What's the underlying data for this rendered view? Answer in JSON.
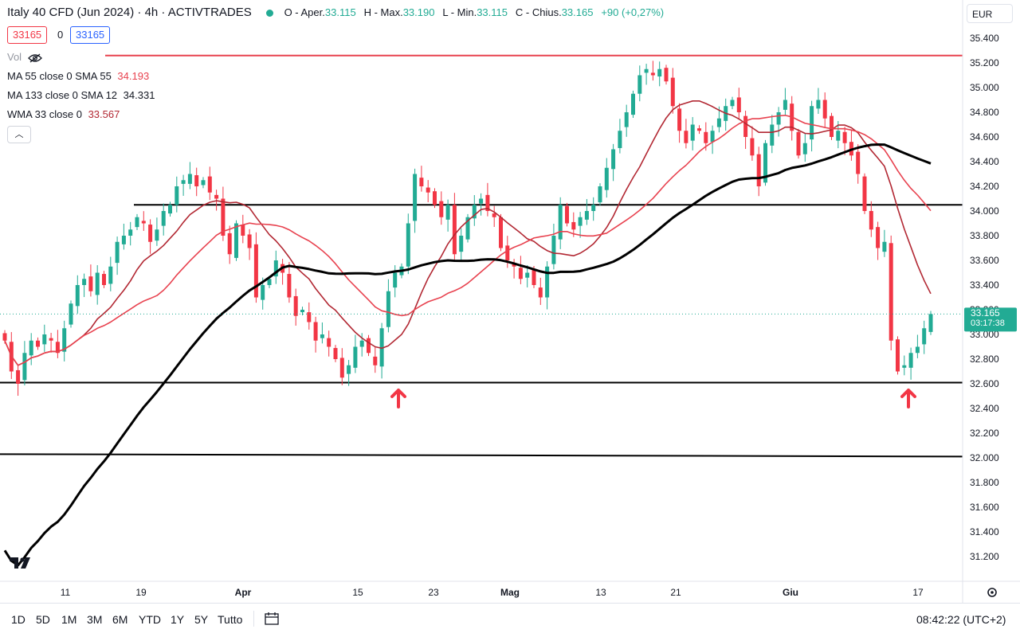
{
  "header": {
    "title": "Italy 40 CFD (Jun 2024) · 4h · ACTIVTRADES",
    "ohlc": [
      {
        "label": "O - Aper.",
        "value": "33.115"
      },
      {
        "label": "H - Max.",
        "value": "33.190"
      },
      {
        "label": "L - Min.",
        "value": "33.115"
      },
      {
        "label": "C - Chius.",
        "value": "33.165"
      }
    ],
    "change": "+90 (+0,27%)",
    "sell_price": "33165",
    "spread": "0",
    "buy_price": "33165"
  },
  "indicators": {
    "vol_label": "Vol",
    "ma55": {
      "label": "MA 55 close 0 SMA 55",
      "value": "34.193"
    },
    "ma133": {
      "label": "MA 133 close 0 SMA 12",
      "value": "34.331"
    },
    "wma33": {
      "label": "WMA 33 close 0",
      "value": "33.567"
    }
  },
  "currency": "EUR",
  "last_price": {
    "value": "33.165",
    "countdown": "03:17:38"
  },
  "footer": {
    "ranges": [
      "1D",
      "5D",
      "1M",
      "3M",
      "6M",
      "YTD",
      "1Y",
      "5Y",
      "Tutto"
    ],
    "clock": "08:42:22 (UTC+2)"
  },
  "colors": {
    "up": "#22ab94",
    "down": "#f23645",
    "ma_dark": "#000000",
    "ma_red1": "#b22833",
    "ma_red2": "#e8424f"
  },
  "icons": [
    "eye-off-icon",
    "chevron-up-icon",
    "calendar-range-icon",
    "gear-icon",
    "tradingview-logo-icon",
    "arrow-up-icon"
  ],
  "chart_data": {
    "type": "candlestick",
    "title": "Italy 40 CFD (Jun 2024) · 4h · ACTIVTRADES",
    "y_ticks": [
      "35.400",
      "35.200",
      "35.000",
      "34.800",
      "34.600",
      "34.400",
      "34.200",
      "34.000",
      "33.800",
      "33.600",
      "33.400",
      "33.200",
      "33.000",
      "32.800",
      "32.600",
      "32.400",
      "32.200",
      "32.000",
      "31.800",
      "31.600",
      "31.400",
      "31.200"
    ],
    "ylim": [
      31000,
      35500
    ],
    "x_ticks": [
      "11",
      "19",
      "Apr",
      "15",
      "23",
      "Mag",
      "13",
      "21",
      "Giu",
      "17"
    ],
    "horizontal_levels": [
      {
        "price": 35260,
        "color": "#e8424f",
        "note": "resistance"
      },
      {
        "price": 34050,
        "color": "#000000"
      },
      {
        "price": 32610,
        "color": "#000000"
      },
      {
        "price": 32030,
        "color": "#000000"
      }
    ],
    "annotations": [
      "arrow-up at 18 Apr low",
      "arrow-up at 14 Jun low"
    ],
    "closes": [
      32950,
      32700,
      32600,
      32850,
      32950,
      32900,
      33000,
      32950,
      32850,
      33050,
      33250,
      33400,
      33450,
      33350,
      33500,
      33400,
      33550,
      33750,
      33800,
      33850,
      33950,
      33900,
      33750,
      33850,
      34000,
      34050,
      34200,
      34250,
      34300,
      34200,
      34250,
      34150,
      34100,
      33800,
      33650,
      33900,
      33800,
      33700,
      33300,
      33400,
      33450,
      33600,
      33500,
      33300,
      33150,
      33200,
      33100,
      32950,
      33000,
      32900,
      32800,
      32650,
      32750,
      32900,
      32950,
      32850,
      32750,
      33050,
      33350,
      33500,
      33550,
      33900,
      34300,
      34200,
      34150,
      34050,
      33950,
      34050,
      33650,
      33800,
      33950,
      34050,
      34100,
      34000,
      33950,
      33700,
      33600,
      33550,
      33450,
      33500,
      33400,
      33300,
      33550,
      33800,
      34050,
      33900,
      33850,
      33950,
      34000,
      34050,
      34200,
      34350,
      34500,
      34650,
      34800,
      34950,
      35100,
      35150,
      35100,
      35150,
      35050,
      34850,
      34650,
      34550,
      34700,
      34650,
      34550,
      34650,
      34750,
      34850,
      34900,
      34800,
      34600,
      34450,
      34200,
      34550,
      34700,
      34800,
      34900,
      34650,
      34450,
      34550,
      34850,
      34900,
      34750,
      34600,
      34650,
      34550,
      34450,
      34300,
      34000,
      33850,
      33700,
      33750,
      32950,
      32700,
      32750,
      32850,
      32900,
      33050,
      33165
    ]
  }
}
